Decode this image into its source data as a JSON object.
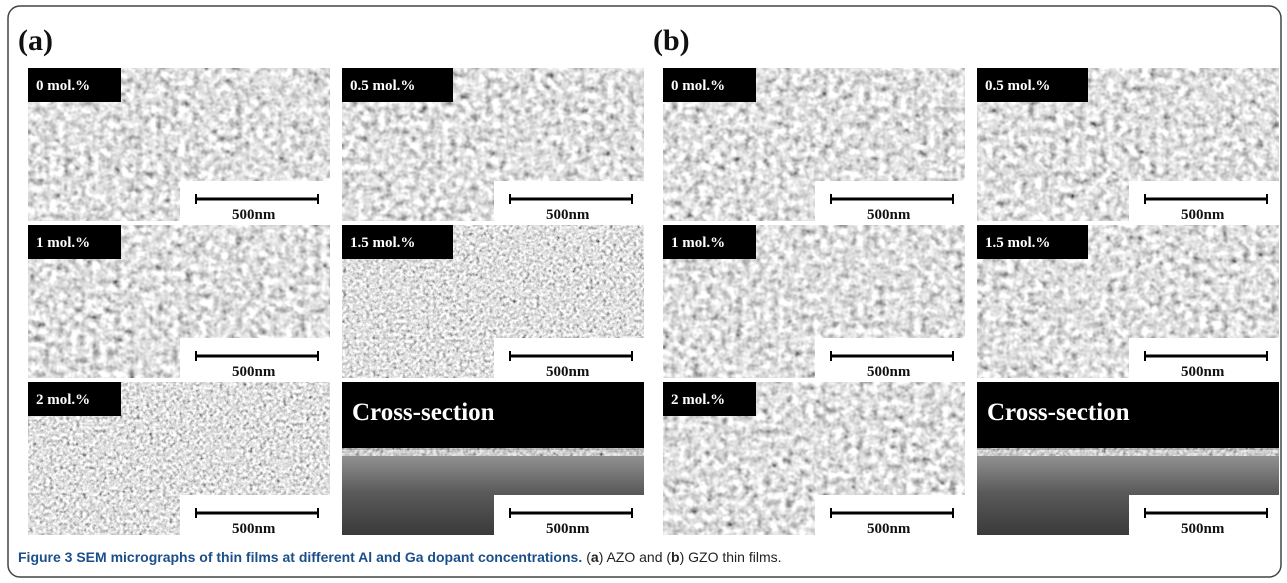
{
  "panels": [
    {
      "label": "(a)",
      "images": [
        {
          "label": "0 mol.%",
          "scale": "500nm"
        },
        {
          "label": "0.5 mol.%",
          "scale": "500nm"
        },
        {
          "label": "1 mol.%",
          "scale": "500nm"
        },
        {
          "label": "1.5 mol.%",
          "scale": "500nm"
        },
        {
          "label": "2 mol.%",
          "scale": "500nm"
        },
        {
          "label": "Cross-section",
          "scale": "500nm"
        }
      ]
    },
    {
      "label": "(b)",
      "images": [
        {
          "label": "0 mol.%",
          "scale": "500nm"
        },
        {
          "label": "0.5 mol.%",
          "scale": "500nm"
        },
        {
          "label": "1 mol.%",
          "scale": "500nm"
        },
        {
          "label": "1.5 mol.%",
          "scale": "500nm"
        },
        {
          "label": "2 mol.%",
          "scale": "500nm"
        },
        {
          "label": "Cross-section",
          "scale": "500nm"
        }
      ]
    }
  ],
  "caption": {
    "title": "Figure 3 SEM micrographs of thin films at different Al and Ga dopant concentrations.",
    "parts": [
      "(",
      "a",
      ") AZO and (",
      "b",
      ") GZO thin films."
    ]
  }
}
